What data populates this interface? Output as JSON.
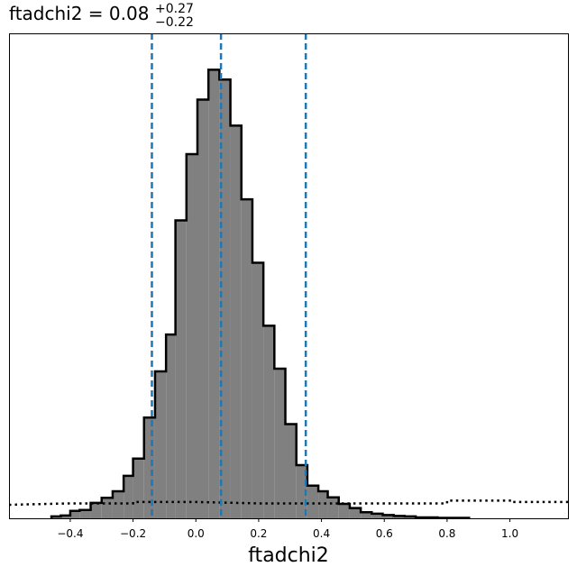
{
  "chart_data": {
    "type": "bar",
    "title": {
      "main": "ftadchi2 = 0.08",
      "upper": "+0.27",
      "lower": "−0.22"
    },
    "xlabel": "ftadchi2",
    "ylabel": "",
    "xlim": [
      -0.595,
      1.185
    ],
    "ylim": [
      0,
      1.04
    ],
    "x_ticks": [
      -0.4,
      -0.2,
      0.0,
      0.2,
      0.4,
      0.6,
      0.8,
      1.0
    ],
    "x_tick_labels": [
      "−0.4",
      "−0.2",
      "0.0",
      "0.2",
      "0.4",
      "0.6",
      "0.8",
      "1.0"
    ],
    "grid": false,
    "histogram": {
      "bin_edges": [
        -0.46,
        -0.43,
        -0.4,
        -0.37,
        -0.335,
        -0.3,
        -0.265,
        -0.23,
        -0.2,
        -0.165,
        -0.13,
        -0.095,
        -0.065,
        -0.03,
        0.005,
        0.04,
        0.075,
        0.11,
        0.145,
        0.18,
        0.215,
        0.25,
        0.285,
        0.32,
        0.355,
        0.39,
        0.42,
        0.455,
        0.49,
        0.525,
        0.56,
        0.595,
        0.63,
        0.665,
        0.7,
        0.735,
        0.77,
        0.8,
        0.835,
        0.87
      ],
      "counts": [
        0.004,
        0.006,
        0.016,
        0.018,
        0.033,
        0.044,
        0.058,
        0.091,
        0.128,
        0.216,
        0.315,
        0.394,
        0.639,
        0.781,
        0.898,
        0.962,
        0.941,
        0.842,
        0.684,
        0.548,
        0.413,
        0.321,
        0.202,
        0.114,
        0.07,
        0.058,
        0.045,
        0.031,
        0.022,
        0.013,
        0.01,
        0.007,
        0.005,
        0.004,
        0.002,
        0.002,
        0.001,
        0.001,
        0.001
      ],
      "fill_color": "#808080",
      "edge_color": "#000000"
    },
    "prior": {
      "x": [
        -0.595,
        -0.4,
        -0.2,
        -0.2,
        0.0,
        0.2,
        0.4,
        0.6,
        0.8,
        0.8,
        1.0,
        1.0,
        1.185
      ],
      "y": [
        0.029,
        0.032,
        0.032,
        0.035,
        0.035,
        0.032,
        0.032,
        0.032,
        0.032,
        0.038,
        0.038,
        0.035,
        0.035
      ],
      "style": "dotted",
      "color": "#000000"
    },
    "quantile_lines": {
      "values": [
        -0.14,
        0.08,
        0.35
      ],
      "color": "#1f77b4",
      "style": "dashed"
    }
  }
}
